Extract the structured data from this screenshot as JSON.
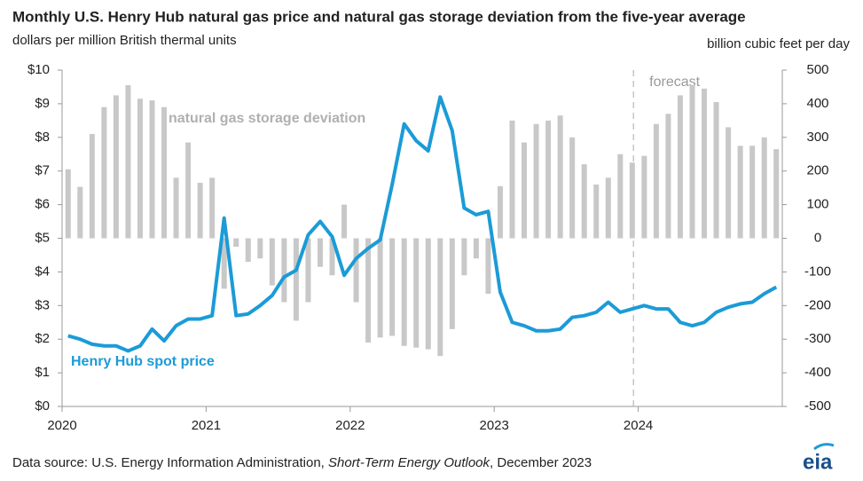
{
  "chart_data": {
    "type": "bar_line",
    "title": "Monthly U.S. Henry Hub natural gas price and natural gas storage deviation from the five-year average",
    "y_label": "dollars per million British thermal units",
    "y2_label": "billion cubic feet per day",
    "categories": [
      "2020",
      null,
      null,
      null,
      null,
      null,
      null,
      null,
      null,
      null,
      null,
      null,
      "2021",
      null,
      null,
      null,
      null,
      null,
      null,
      null,
      null,
      null,
      null,
      null,
      "2022",
      null,
      null,
      null,
      null,
      null,
      null,
      null,
      null,
      null,
      null,
      null,
      "2023",
      null,
      null,
      null,
      null,
      null,
      null,
      null,
      null,
      null,
      null,
      null,
      "2024",
      null,
      null,
      null,
      null,
      null,
      null,
      null,
      null,
      null,
      null,
      null
    ],
    "series": [
      {
        "name": "natural gas storage deviation",
        "type": "bar",
        "axis": "y2",
        "color": "#c8c8c8",
        "values": [
          205,
          153,
          310,
          390,
          425,
          455,
          415,
          410,
          390,
          180,
          285,
          165,
          180,
          -150,
          -25,
          -70,
          -60,
          -140,
          -190,
          -245,
          -190,
          -85,
          -110,
          100,
          -190,
          -310,
          -295,
          -290,
          -320,
          -325,
          -330,
          -350,
          -270,
          -110,
          -60,
          -165,
          155,
          350,
          285,
          340,
          350,
          365,
          300,
          220,
          160,
          180,
          250,
          225,
          245,
          340,
          370,
          425,
          455,
          445,
          405,
          330,
          275,
          275,
          300,
          265
        ]
      },
      {
        "name": "Henry Hub spot price",
        "type": "line",
        "axis": "y",
        "color": "#1b9bd7",
        "values": [
          2.1,
          2.0,
          1.85,
          1.8,
          1.8,
          1.65,
          1.8,
          2.3,
          1.95,
          2.4,
          2.6,
          2.6,
          2.7,
          5.6,
          2.7,
          2.75,
          3.0,
          3.3,
          3.85,
          4.05,
          5.1,
          5.5,
          5.05,
          3.9,
          4.4,
          4.7,
          4.95,
          6.6,
          8.4,
          7.9,
          7.6,
          9.2,
          8.2,
          5.9,
          5.7,
          5.8,
          3.4,
          2.5,
          2.4,
          2.25,
          2.25,
          2.3,
          2.65,
          2.7,
          2.8,
          3.1,
          2.8,
          2.9,
          3.0,
          2.9,
          2.9,
          2.5,
          2.4,
          2.5,
          2.8,
          2.95,
          3.05,
          3.1,
          3.35,
          3.55
        ]
      }
    ],
    "ylim": [
      0,
      10
    ],
    "yticks": [
      {
        "value": 0,
        "label": "$0"
      },
      {
        "value": 1,
        "label": "$1"
      },
      {
        "value": 2,
        "label": "$2"
      },
      {
        "value": 3,
        "label": "$3"
      },
      {
        "value": 4,
        "label": "$4"
      },
      {
        "value": 5,
        "label": "$5"
      },
      {
        "value": 6,
        "label": "$6"
      },
      {
        "value": 7,
        "label": "$7"
      },
      {
        "value": 8,
        "label": "$8"
      },
      {
        "value": 9,
        "label": "$9"
      },
      {
        "value": 10,
        "label": "$10"
      }
    ],
    "y2lim": [
      -500,
      500
    ],
    "y2ticks": [
      -500,
      -400,
      -300,
      -200,
      -100,
      0,
      100,
      200,
      300,
      400,
      500
    ],
    "forecast": {
      "label": "forecast",
      "start_index": 47
    },
    "source": [
      "Data source: U.S. Energy Information Administration, ",
      "Short-Term Energy Outlook",
      ", December 2023"
    ],
    "logo": "eia"
  }
}
